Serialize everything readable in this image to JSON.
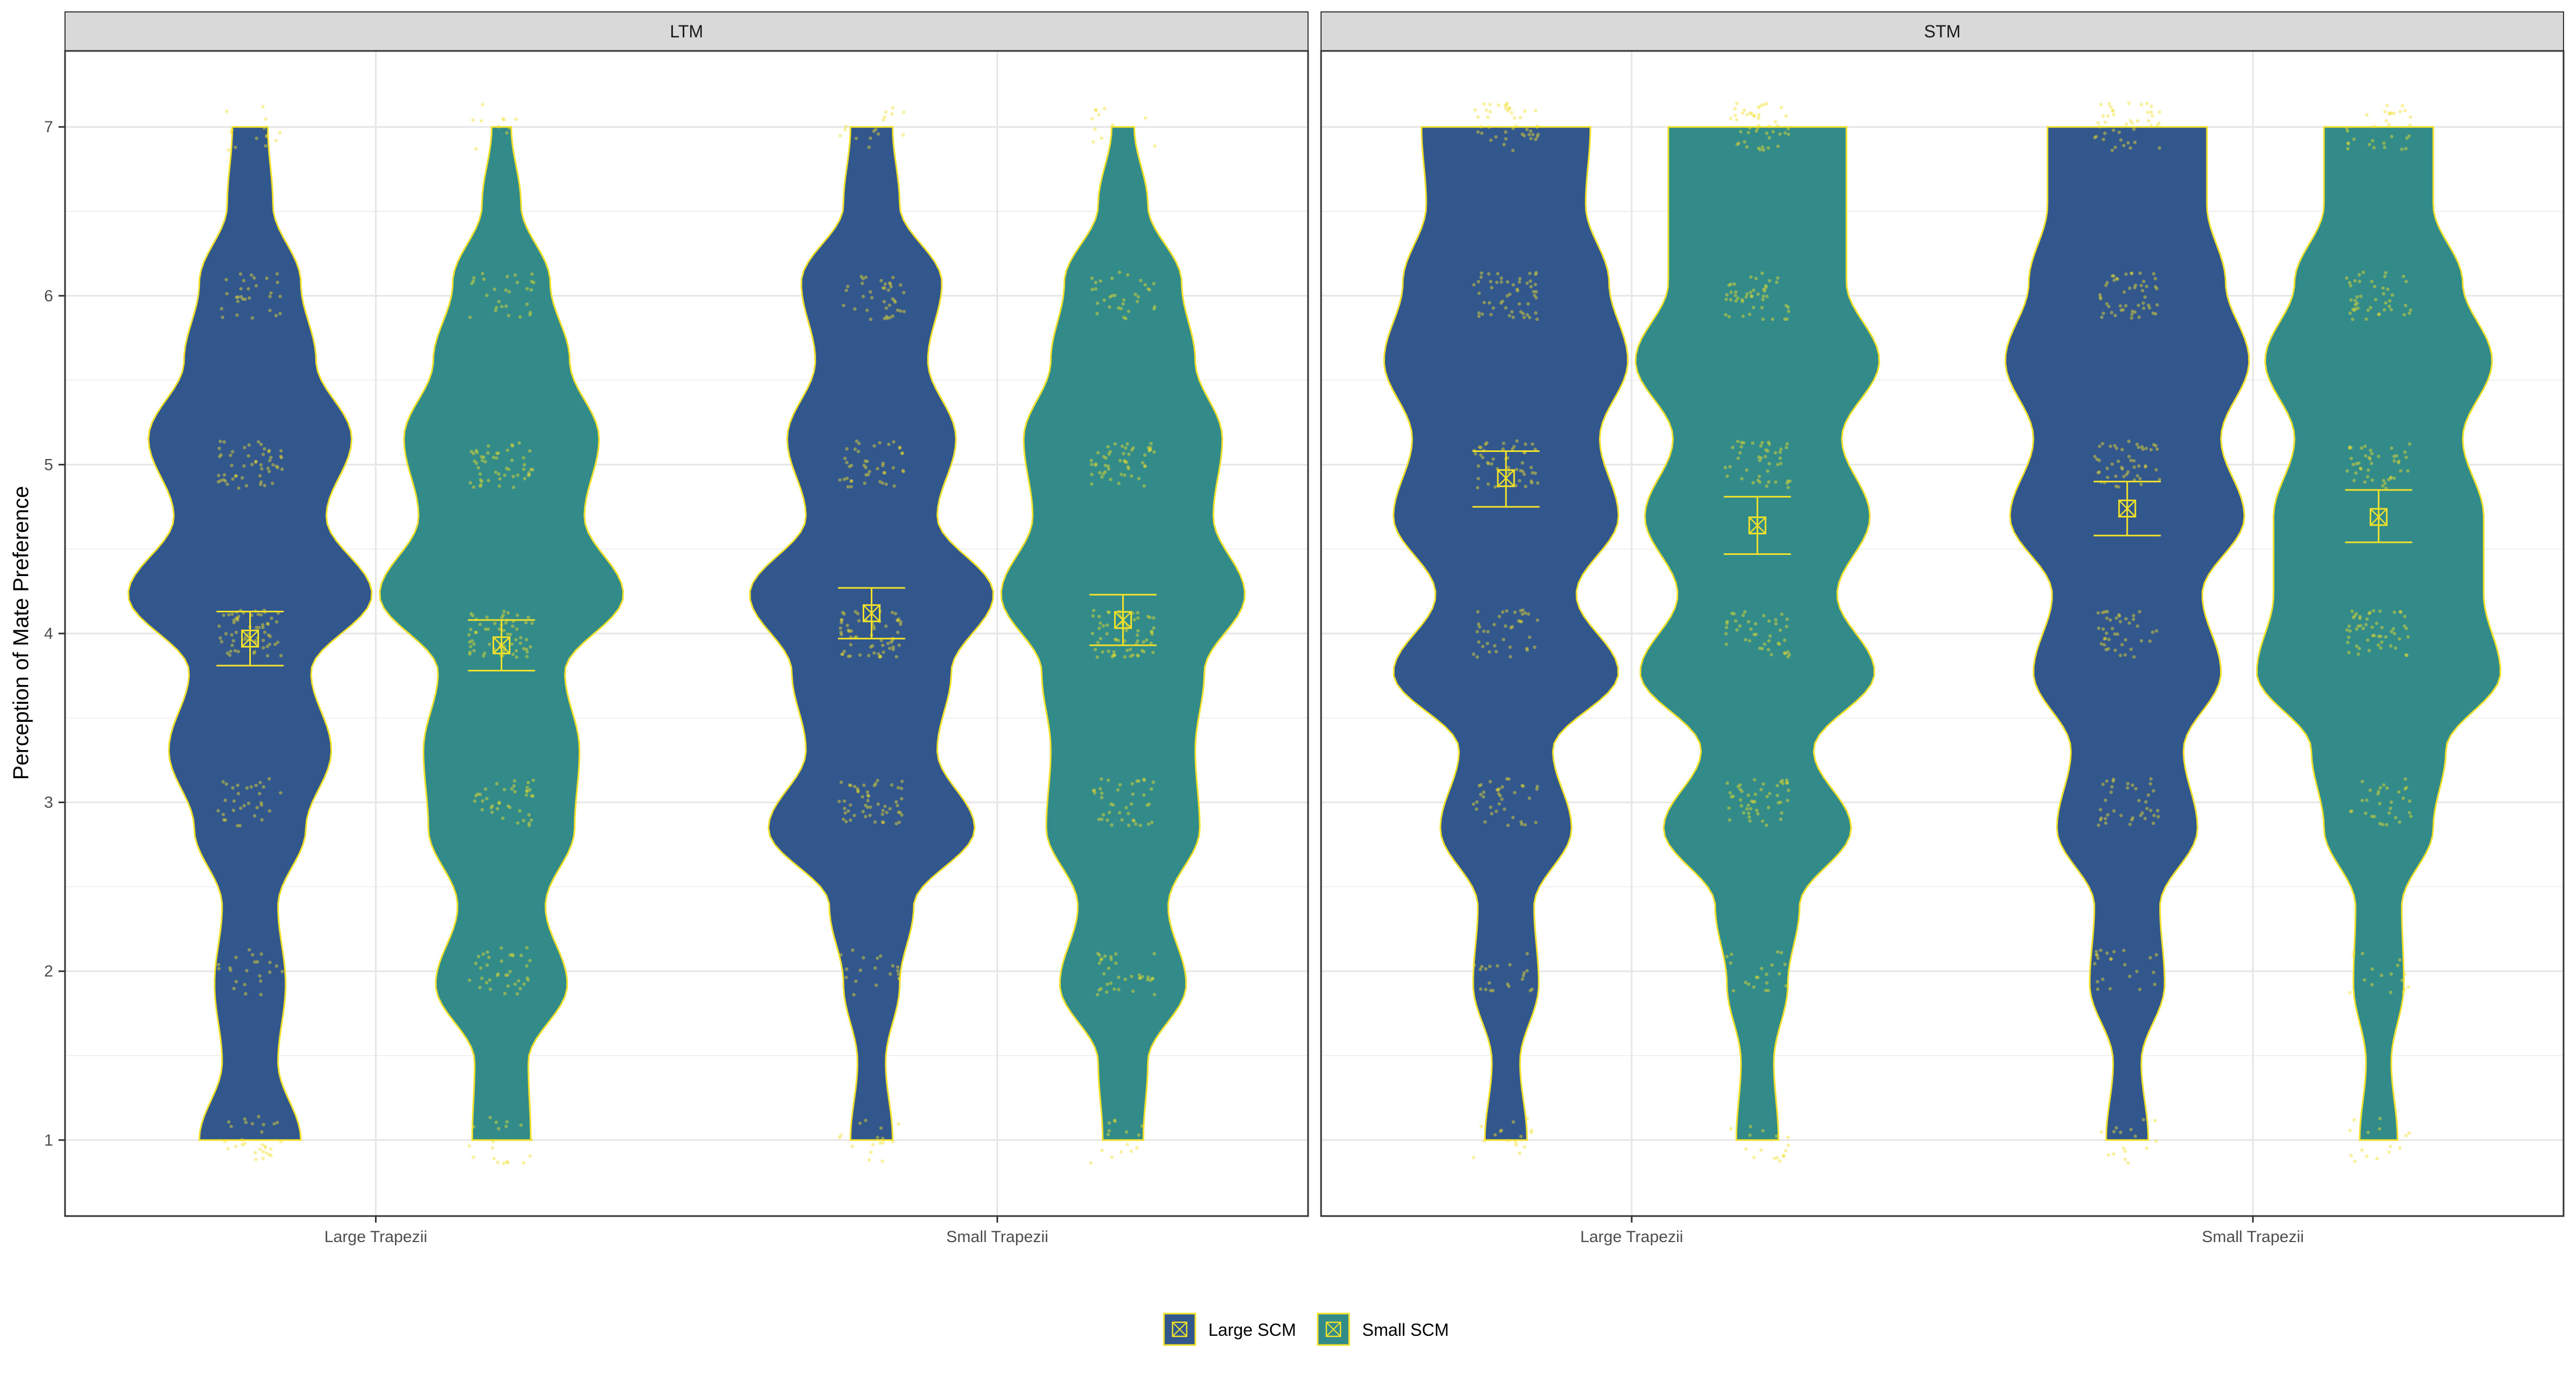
{
  "chart_data": {
    "type": "violin",
    "title": "",
    "ylabel": "Perception of Mate Preference",
    "xlabel": "",
    "ylim": [
      0.55,
      7.45
    ],
    "y_ticks": [
      1,
      2,
      3,
      4,
      5,
      6,
      7
    ],
    "categories": [
      "Large Trapezii",
      "Small Trapezii"
    ],
    "grid": true,
    "legend_position": "bottom",
    "series": [
      {
        "name": "Large SCM",
        "color": "#31578d"
      },
      {
        "name": "Small SCM",
        "color": "#328b89"
      }
    ],
    "outline_color": "#f2e12b",
    "facets": [
      {
        "label": "LTM",
        "groups": [
          {
            "category": "Large Trapezii",
            "series": "Large SCM",
            "mean": 3.97,
            "ci": [
              3.81,
              4.13
            ],
            "density": [
              1.0,
              0.55,
              0.7,
              0.55,
              1.1,
              1.6,
              1.2,
              2.4,
              1.5,
              2.0,
              1.3,
              1.0,
              0.45,
              0.35
            ]
          },
          {
            "category": "Large Trapezii",
            "series": "Small SCM",
            "mean": 3.93,
            "ci": [
              3.78,
              4.08
            ],
            "density": [
              0.6,
              0.55,
              1.35,
              0.9,
              1.5,
              1.6,
              1.3,
              2.5,
              1.7,
              2.0,
              1.4,
              1.0,
              0.4,
              0.2
            ]
          },
          {
            "category": "Small Trapezii",
            "series": "Large SCM",
            "mean": 4.12,
            "ci": [
              3.97,
              4.27
            ],
            "density": [
              0.45,
              0.3,
              0.6,
              0.9,
              2.2,
              1.4,
              1.7,
              2.6,
              1.4,
              1.8,
              1.2,
              1.5,
              0.6,
              0.45
            ]
          },
          {
            "category": "Small Trapezii",
            "series": "Small SCM",
            "mean": 4.08,
            "ci": [
              3.93,
              4.23
            ],
            "density": [
              0.45,
              0.55,
              1.4,
              1.0,
              1.7,
              1.6,
              1.8,
              2.7,
              2.0,
              2.2,
              1.6,
              1.3,
              0.55,
              0.25
            ]
          }
        ]
      },
      {
        "label": "STM",
        "groups": [
          {
            "category": "Large Trapezii",
            "series": "Large SCM",
            "mean": 4.92,
            "ci": [
              4.75,
              5.08
            ],
            "density": [
              0.45,
              0.3,
              0.7,
              0.6,
              1.4,
              1.0,
              2.4,
              1.5,
              2.4,
              2.0,
              2.6,
              2.2,
              1.7,
              1.8
            ]
          },
          {
            "category": "Large Trapezii",
            "series": "Small SCM",
            "mean": 4.64,
            "ci": [
              4.47,
              4.81
            ],
            "density": [
              0.45,
              0.35,
              0.65,
              0.9,
              2.0,
              1.2,
              2.5,
              1.7,
              2.4,
              1.8,
              2.6,
              1.9,
              1.9,
              1.9
            ]
          },
          {
            "category": "Small Trapezii",
            "series": "Large SCM",
            "mean": 4.74,
            "ci": [
              4.58,
              4.9
            ],
            "density": [
              0.45,
              0.3,
              0.8,
              0.7,
              1.5,
              1.2,
              2.0,
              1.6,
              2.5,
              2.0,
              2.6,
              2.1,
              1.7,
              1.7
            ]
          },
          {
            "category": "Small Trapezii",
            "series": "Small SCM",
            "mean": 4.69,
            "ci": [
              4.54,
              4.85
            ],
            "density": [
              0.45,
              0.3,
              0.6,
              0.55,
              1.3,
              1.6,
              2.9,
              2.5,
              2.5,
              2.0,
              2.7,
              2.0,
              1.3,
              1.3
            ]
          }
        ]
      }
    ]
  }
}
